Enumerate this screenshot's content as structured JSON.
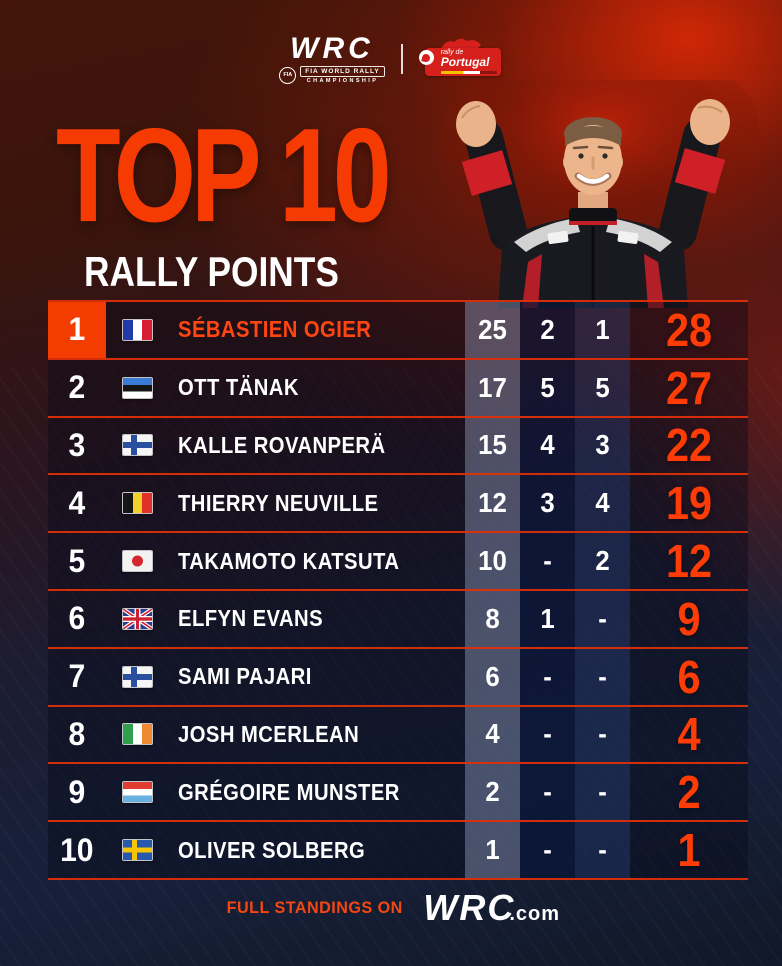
{
  "header": {
    "wrc": "WRC",
    "fia_badge": "FIA",
    "wrc_sub1": "FIA WORLD RALLY",
    "wrc_sub2": "CHAMPIONSHIP",
    "event_line1": "rally de",
    "event_line2": "Portugal"
  },
  "title": {
    "main": "TOP 10",
    "sub": "RALLY POINTS"
  },
  "colors": {
    "accent": "#f53a02",
    "total": "#ff3c05",
    "separator": "#de2f08",
    "rank1_box": "#f23c00"
  },
  "standings": [
    {
      "rank": "1",
      "country": "france",
      "name": "SÉBASTIEN OGIER",
      "p1": "25",
      "p2": "2",
      "p3": "1",
      "total": "28",
      "highlight": true
    },
    {
      "rank": "2",
      "country": "estonia",
      "name": "OTT TÄNAK",
      "p1": "17",
      "p2": "5",
      "p3": "5",
      "total": "27"
    },
    {
      "rank": "3",
      "country": "finland",
      "name": "KALLE ROVANPERÄ",
      "p1": "15",
      "p2": "4",
      "p3": "3",
      "total": "22"
    },
    {
      "rank": "4",
      "country": "belgium",
      "name": "THIERRY NEUVILLE",
      "p1": "12",
      "p2": "3",
      "p3": "4",
      "total": "19"
    },
    {
      "rank": "5",
      "country": "japan",
      "name": "TAKAMOTO KATSUTA",
      "p1": "10",
      "p2": "-",
      "p3": "2",
      "total": "12"
    },
    {
      "rank": "6",
      "country": "uk",
      "name": "ELFYN EVANS",
      "p1": "8",
      "p2": "1",
      "p3": "-",
      "total": "9"
    },
    {
      "rank": "7",
      "country": "finland",
      "name": "SAMI PAJARI",
      "p1": "6",
      "p2": "-",
      "p3": "-",
      "total": "6"
    },
    {
      "rank": "8",
      "country": "ireland",
      "name": "JOSH MCERLEAN",
      "p1": "4",
      "p2": "-",
      "p3": "-",
      "total": "4"
    },
    {
      "rank": "9",
      "country": "luxembourg",
      "name": "GRÉGOIRE MUNSTER",
      "p1": "2",
      "p2": "-",
      "p3": "-",
      "total": "2"
    },
    {
      "rank": "10",
      "country": "sweden",
      "name": "OLIVER SOLBERG",
      "p1": "1",
      "p2": "-",
      "p3": "-",
      "total": "1"
    }
  ],
  "footer": {
    "label": "FULL STANDINGS ON",
    "brand": "WRC",
    "brand_suffix": ".com"
  }
}
